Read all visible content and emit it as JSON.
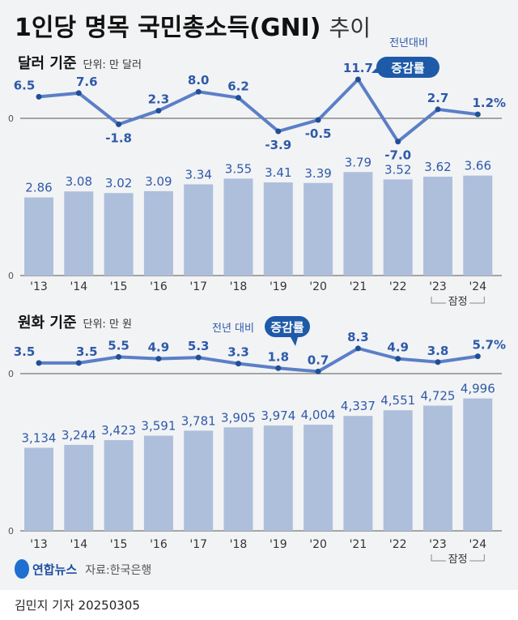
{
  "title": "1인당 명목 국민총소득(GNI)",
  "title_suffix": "추이",
  "source": "자료:한국은행",
  "logo": "연합뉴스",
  "byline": "김민지 기자  20250305",
  "colors": {
    "line": "#5b7fc7",
    "dot": "#1f4f96",
    "bar": "#aebfdc",
    "label": "#2e5aa8",
    "bg": "#f2f3f5",
    "badge": "#1e5aa8"
  },
  "chart_data": [
    {
      "type": "line",
      "title": "달러 기준",
      "unit": "단위: 만 달러",
      "note": "전년대비",
      "badge": "증감률",
      "categories": [
        "'13",
        "'14",
        "'15",
        "'16",
        "'17",
        "'18",
        "'19",
        "'20",
        "'21",
        "'22",
        "'23",
        "'24"
      ],
      "values": [
        6.5,
        7.6,
        -1.8,
        2.3,
        8.0,
        6.2,
        -3.9,
        -0.5,
        11.7,
        -7.0,
        2.7,
        1.2
      ],
      "labels": [
        "6.5",
        "7.6",
        "-1.8",
        "2.3",
        "8.0",
        "6.2",
        "-3.9",
        "-0.5",
        "11.7",
        "-7.0",
        "2.7",
        "1.2%"
      ],
      "zero_label": "0"
    },
    {
      "type": "bar",
      "categories": [
        "'13",
        "'14",
        "'15",
        "'16",
        "'17",
        "'18",
        "'19",
        "'20",
        "'21",
        "'22",
        "'23",
        "'24"
      ],
      "values": [
        2.86,
        3.08,
        3.02,
        3.09,
        3.34,
        3.55,
        3.41,
        3.39,
        3.79,
        3.52,
        3.62,
        3.66
      ],
      "labels": [
        "2.86",
        "3.08",
        "3.02",
        "3.09",
        "3.34",
        "3.55",
        "3.41",
        "3.39",
        "3.79",
        "3.52",
        "3.62",
        "3.66"
      ],
      "zero_label": "0",
      "provisional": "잠정"
    },
    {
      "type": "line",
      "title": "원화 기준",
      "unit": "단위: 만 원",
      "note": "전년 대비",
      "badge": "증감률",
      "categories": [
        "'13",
        "'14",
        "'15",
        "'16",
        "'17",
        "'18",
        "'19",
        "'20",
        "'21",
        "'22",
        "'23",
        "'24"
      ],
      "values": [
        3.5,
        3.5,
        5.5,
        4.9,
        5.3,
        3.3,
        1.8,
        0.7,
        8.3,
        4.9,
        3.8,
        5.7
      ],
      "labels": [
        "3.5",
        "3.5",
        "5.5",
        "4.9",
        "5.3",
        "3.3",
        "1.8",
        "0.7",
        "8.3",
        "4.9",
        "3.8",
        "5.7%"
      ],
      "zero_label": "0"
    },
    {
      "type": "bar",
      "categories": [
        "'13",
        "'14",
        "'15",
        "'16",
        "'17",
        "'18",
        "'19",
        "'20",
        "'21",
        "'22",
        "'23",
        "'24"
      ],
      "values": [
        3134,
        3244,
        3423,
        3591,
        3781,
        3905,
        3974,
        4004,
        4337,
        4551,
        4725,
        4996
      ],
      "labels": [
        "3,134",
        "3,244",
        "3,423",
        "3,591",
        "3,781",
        "3,905",
        "3,974",
        "4,004",
        "4,337",
        "4,551",
        "4,725",
        "4,996"
      ],
      "zero_label": "0",
      "provisional": "잠정"
    }
  ]
}
